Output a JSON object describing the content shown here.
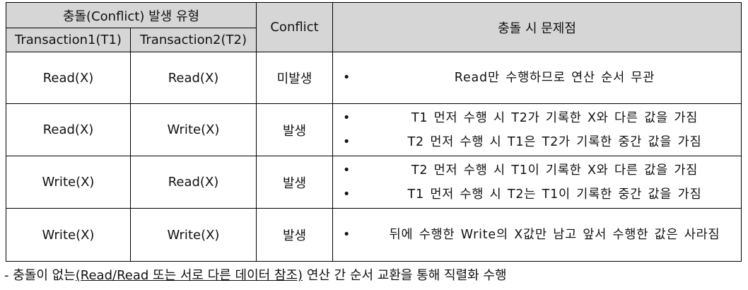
{
  "table": {
    "group_header": "충돌(Conflict) 발생 유형",
    "t1_header": "Transaction1(T1)",
    "t2_header": "Transaction2(T2)",
    "conflict_header": "Conflict",
    "issues_header": "충돌 시 문제점",
    "rows": [
      {
        "t1": "Read(X)",
        "t2": "Read(X)",
        "conflict": "미발생",
        "issues": [
          "Read만 수행하므로 연산 순서 무관"
        ]
      },
      {
        "t1": "Read(X)",
        "t2": "Write(X)",
        "conflict": "발생",
        "issues": [
          "T1 먼저 수행 시 T2가 기록한 X와 다른 값을 가짐",
          "T2 먼저 수행 시 T1은 T2가 기록한 중간 값을 가짐"
        ]
      },
      {
        "t1": "Write(X)",
        "t2": "Read(X)",
        "conflict": "발생",
        "issues": [
          "T2 먼저 수행 시 T1이 기록한 X와 다른 값을 가짐",
          "T1 먼저 수행 시 T2는 T1이 기록한 중간 값을 가짐"
        ]
      },
      {
        "t1": "Write(X)",
        "t2": "Write(X)",
        "conflict": "발생",
        "issues": [
          "뒤에 수행한 Write의 X값만 남고 앞서 수행한 값은 사라짐"
        ]
      }
    ]
  },
  "note": {
    "prefix": "- 충돌이 없는",
    "paren_text": "(Read/Read 또는 서로 다른 데이터 참조)",
    "suffix": " 연산 간 순서 교환을 통해 직렬화 수행"
  }
}
